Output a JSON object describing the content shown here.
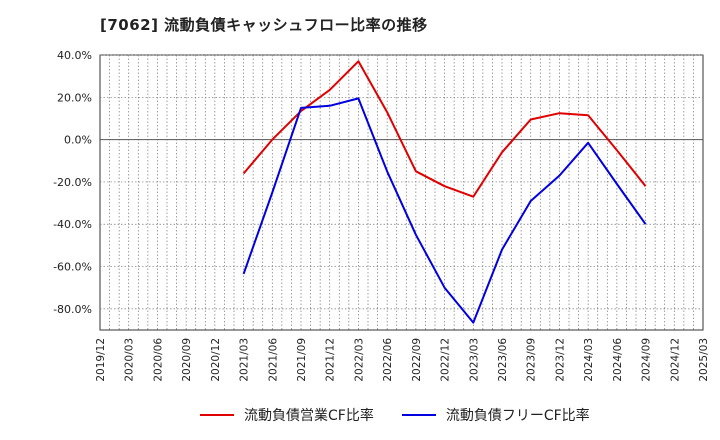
{
  "title": "[7062]  流動負債キャッシュフロー比率の推移",
  "chart_data": {
    "type": "line",
    "title": "[7062]  流動負債キャッシュフロー比率の推移",
    "x_categories": [
      "2019/12",
      "2020/03",
      "2020/06",
      "2020/09",
      "2020/12",
      "2021/03",
      "2021/06",
      "2021/09",
      "2021/12",
      "2022/03",
      "2022/06",
      "2022/09",
      "2022/12",
      "2023/03",
      "2023/06",
      "2023/09",
      "2023/12",
      "2024/03",
      "2024/06",
      "2024/09",
      "2024/12",
      "2025/03"
    ],
    "y_ticks": [
      "40.0%",
      "20.0%",
      "0.0%",
      "-20.0%",
      "-40.0%",
      "-60.0%",
      "-80.0%"
    ],
    "ylim": [
      -90,
      40
    ],
    "grid": true,
    "legend_position": "bottom",
    "series": [
      {
        "name": "流動負債営業CF比率",
        "color": "#e00000",
        "x": [
          "2021/03",
          "2021/06",
          "2021/09",
          "2021/12",
          "2022/03",
          "2022/06",
          "2022/09",
          "2022/12",
          "2023/03",
          "2023/06",
          "2023/09",
          "2023/12",
          "2024/03",
          "2024/06",
          "2024/09"
        ],
        "values": [
          -16,
          0,
          13.5,
          23.5,
          37,
          13,
          -15,
          -22,
          -27,
          -6,
          9.5,
          12.5,
          11.5,
          -5,
          -22
        ]
      },
      {
        "name": "流動負債フリーCF比率",
        "color": "#0000e0",
        "x": [
          "2021/03",
          "2021/06",
          "2021/09",
          "2021/12",
          "2022/03",
          "2022/06",
          "2022/09",
          "2022/12",
          "2023/03",
          "2023/06",
          "2023/09",
          "2023/12",
          "2024/03",
          "2024/06",
          "2024/09"
        ],
        "values": [
          -63.5,
          -25,
          15,
          16,
          19.5,
          -15,
          -45,
          -70,
          -86.5,
          -52,
          -29,
          -17,
          -1.5,
          -21,
          -40
        ]
      }
    ]
  }
}
